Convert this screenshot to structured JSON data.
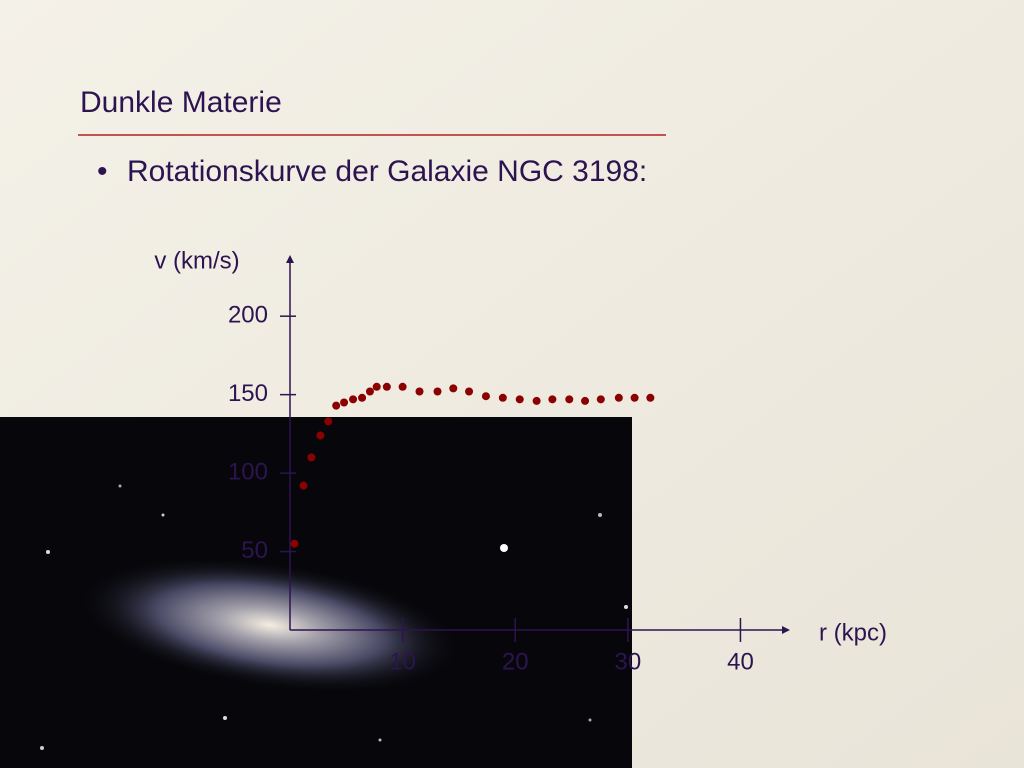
{
  "slide": {
    "title": "Dunkle Materie",
    "bullet": "Rotationskurve der Galaxie NGC 3198:"
  },
  "chart_data": {
    "type": "scatter",
    "x_label": "r (kpc)",
    "y_label": "v (km/s)",
    "x": [
      0.4,
      1.2,
      1.9,
      2.7,
      3.4,
      4.1,
      4.8,
      5.6,
      6.4,
      7.1,
      7.7,
      8.6,
      10.0,
      11.5,
      13.1,
      14.5,
      15.9,
      17.4,
      18.9,
      20.4,
      21.9,
      23.3,
      24.8,
      26.2,
      27.6,
      29.2,
      30.6,
      32.0
    ],
    "values": [
      55,
      92,
      110,
      124,
      133,
      143,
      145,
      147,
      148,
      152,
      155,
      155,
      155,
      152,
      152,
      154,
      152,
      149,
      148,
      147,
      146,
      147,
      147,
      146,
      147,
      148,
      148,
      148
    ],
    "color": "#8b0000",
    "xlim": [
      0,
      44.4
    ],
    "ylim": [
      0,
      239
    ],
    "xticks": [
      10,
      20,
      30,
      40
    ],
    "yticks": [
      50,
      100,
      150,
      200
    ]
  }
}
